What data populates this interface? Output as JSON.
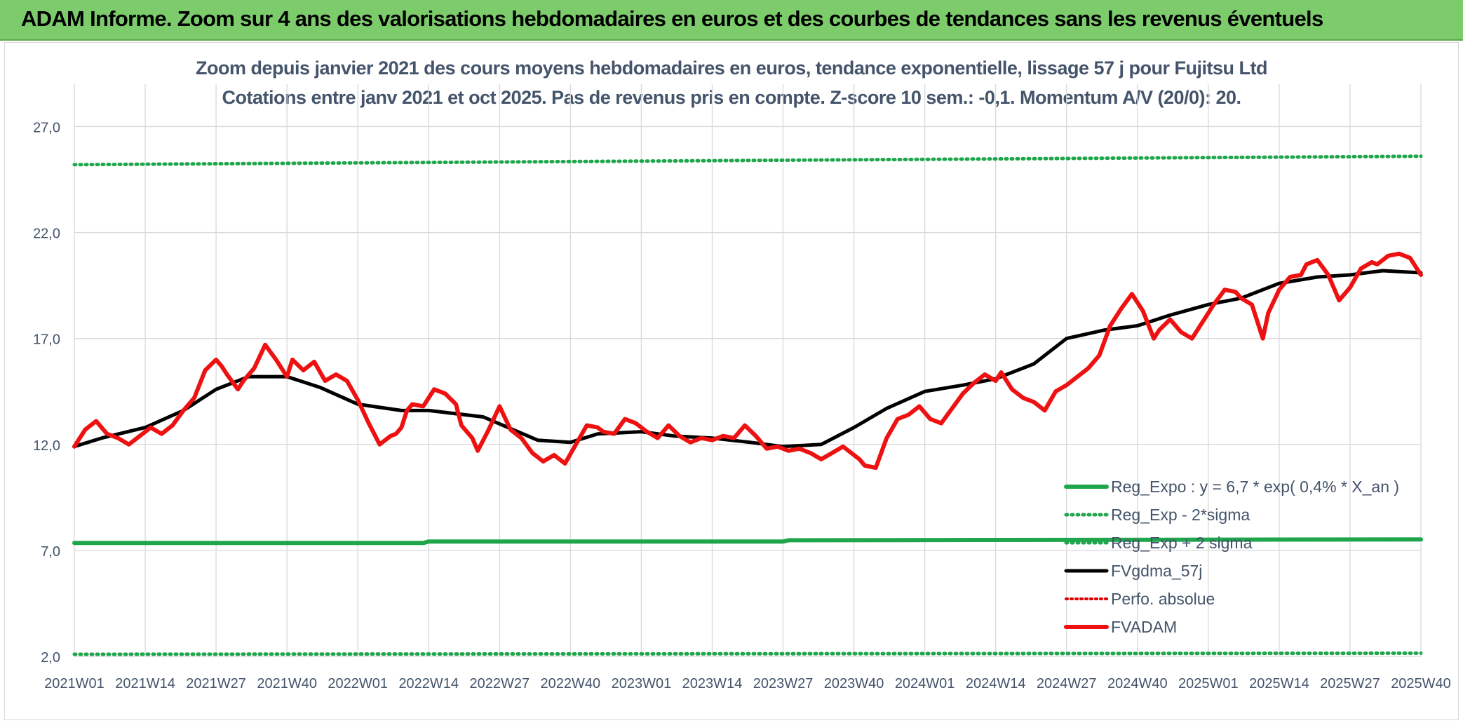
{
  "header": {
    "banner_title": "ADAM Informe. Zoom sur 4 ans des valorisations hebdomadaires en euros et des courbes de tendances sans les revenus éventuels"
  },
  "colors": {
    "banner_bg": "#7ccc6c",
    "axis_text": "#44546a",
    "grid": "#d9d9d9",
    "reg_expo": "#1fa64c",
    "reg_sigma": "#1fa64c",
    "fvgdma": "#000000",
    "perfo": "#e00000",
    "fvadam": "#ee1111"
  },
  "chart_data": {
    "type": "line",
    "title": "Zoom depuis janvier 2021 des cours moyens hebdomadaires en euros, tendance exponentielle, lissage 57 j pour Fujitsu Ltd",
    "subtitle": "Cotations entre janv 2021 et oct 2025. Pas de revenus pris en compte. Z-score 10 sem.: -0,1. Momentum A/V (20/0): 20.",
    "xlabel": "",
    "ylabel": "",
    "ylim": [
      2.0,
      29.0
    ],
    "y_ticks": [
      "2,0",
      "7,0",
      "12,0",
      "17,0",
      "22,0",
      "27,0"
    ],
    "y_tick_values": [
      2,
      7,
      12,
      17,
      22,
      27
    ],
    "x_tick_labels": [
      "2021W01",
      "2021W14",
      "2021W27",
      "2021W40",
      "2022W01",
      "2022W14",
      "2022W27",
      "2022W40",
      "2023W01",
      "2023W14",
      "2023W27",
      "2023W40",
      "2024W01",
      "2024W14",
      "2024W27",
      "2024W40",
      "2025W01",
      "2025W14",
      "2025W27",
      "2025W40"
    ],
    "grid": "vertical and horizontal",
    "legend_position": "bottom-right",
    "legend": [
      "Reg_Expo : y = 6,7 * exp( 0,4% *  X_an )",
      "Reg_Exp - 2*sigma",
      "Reg_Exp + 2 sigma",
      "FVgdma_57j",
      "Perfo. absolue",
      "FVADAM"
    ],
    "series": [
      {
        "name": "Reg_Expo : y = 6,7 * exp( 0,4% *  X_an )",
        "style": "solid",
        "x_index": [
          0,
          64,
          65,
          130,
          131,
          247
        ],
        "values": [
          7.35,
          7.35,
          7.42,
          7.42,
          7.48,
          7.52
        ]
      },
      {
        "name": "Reg_Exp - 2*sigma",
        "style": "dotted",
        "x_index": [
          0,
          247
        ],
        "values": [
          2.1,
          2.15
        ]
      },
      {
        "name": "Reg_Exp + 2 sigma",
        "style": "dotted",
        "x_index": [
          0,
          247
        ],
        "values": [
          25.2,
          25.6
        ]
      },
      {
        "name": "FVgdma_57j",
        "style": "solid",
        "x_index": [
          0,
          5,
          13,
          20,
          26,
          32,
          39,
          45,
          52,
          60,
          65,
          75,
          85,
          91,
          96,
          104,
          110,
          117,
          124,
          130,
          137,
          143,
          149,
          156,
          163,
          169,
          176,
          182,
          189,
          195,
          201,
          208,
          214,
          221,
          228,
          234,
          240,
          247
        ],
        "values": [
          11.9,
          12.3,
          12.8,
          13.6,
          14.6,
          15.2,
          15.2,
          14.7,
          13.9,
          13.6,
          13.6,
          13.3,
          12.2,
          12.1,
          12.5,
          12.6,
          12.4,
          12.3,
          12.1,
          11.9,
          12.0,
          12.8,
          13.7,
          14.5,
          14.8,
          15.1,
          15.8,
          17.0,
          17.4,
          17.6,
          18.1,
          18.6,
          18.9,
          19.6,
          19.9,
          20.0,
          20.2,
          20.1
        ]
      },
      {
        "name": "FVADAM",
        "style": "solid",
        "x_index": [
          0,
          2,
          4,
          6,
          8,
          10,
          12,
          14,
          16,
          18,
          20,
          22,
          24,
          26,
          27,
          28,
          30,
          31,
          33,
          35,
          37,
          39,
          40,
          42,
          44,
          46,
          48,
          50,
          52,
          54,
          56,
          58,
          59,
          60,
          61,
          62,
          64,
          66,
          68,
          70,
          71,
          73,
          74,
          76,
          78,
          80,
          82,
          84,
          86,
          88,
          90,
          92,
          94,
          96,
          97,
          99,
          101,
          103,
          105,
          107,
          109,
          111,
          113,
          115,
          117,
          119,
          121,
          123,
          125,
          127,
          129,
          131,
          133,
          135,
          137,
          139,
          141,
          143,
          144,
          145,
          147,
          149,
          151,
          153,
          155,
          157,
          159,
          161,
          163,
          165,
          167,
          169,
          170,
          172,
          174,
          176,
          178,
          180,
          182,
          184,
          186,
          188,
          190,
          192,
          194,
          196,
          198,
          199,
          201,
          203,
          205,
          207,
          209,
          211,
          213,
          214,
          216,
          218,
          219,
          221,
          223,
          225,
          226,
          228,
          230,
          232,
          234,
          236,
          238,
          239,
          241,
          243,
          245,
          247
        ],
        "values": [
          11.9,
          12.7,
          13.1,
          12.5,
          12.3,
          12.0,
          12.4,
          12.8,
          12.5,
          12.9,
          13.6,
          14.2,
          15.5,
          16.0,
          15.7,
          15.3,
          14.6,
          15.0,
          15.6,
          16.7,
          16.0,
          15.2,
          16.0,
          15.5,
          15.9,
          15.0,
          15.3,
          15.0,
          14.1,
          13.0,
          12.0,
          12.4,
          12.5,
          12.8,
          13.6,
          13.9,
          13.8,
          14.6,
          14.4,
          13.9,
          12.9,
          12.3,
          11.7,
          12.7,
          13.8,
          12.7,
          12.3,
          11.6,
          11.2,
          11.5,
          11.1,
          12.0,
          12.9,
          12.8,
          12.6,
          12.5,
          13.2,
          13.0,
          12.6,
          12.3,
          12.9,
          12.4,
          12.1,
          12.3,
          12.2,
          12.4,
          12.3,
          12.9,
          12.4,
          11.8,
          11.9,
          11.7,
          11.8,
          11.6,
          11.3,
          11.6,
          11.9,
          11.5,
          11.3,
          11.0,
          10.9,
          12.3,
          13.2,
          13.4,
          13.8,
          13.2,
          13.0,
          13.7,
          14.4,
          14.9,
          15.3,
          15.0,
          15.4,
          14.6,
          14.2,
          14.0,
          13.6,
          14.5,
          14.8,
          15.2,
          15.6,
          16.2,
          17.6,
          18.4,
          19.1,
          18.3,
          17.0,
          17.4,
          17.9,
          17.3,
          17.0,
          17.8,
          18.6,
          19.3,
          19.2,
          18.9,
          18.6,
          17.0,
          18.2,
          19.3,
          19.9,
          20.0,
          20.5,
          20.7,
          20.0,
          18.8,
          19.4,
          20.3,
          20.6,
          20.5,
          20.9,
          21.0,
          20.8,
          20.0
        ]
      }
    ]
  }
}
